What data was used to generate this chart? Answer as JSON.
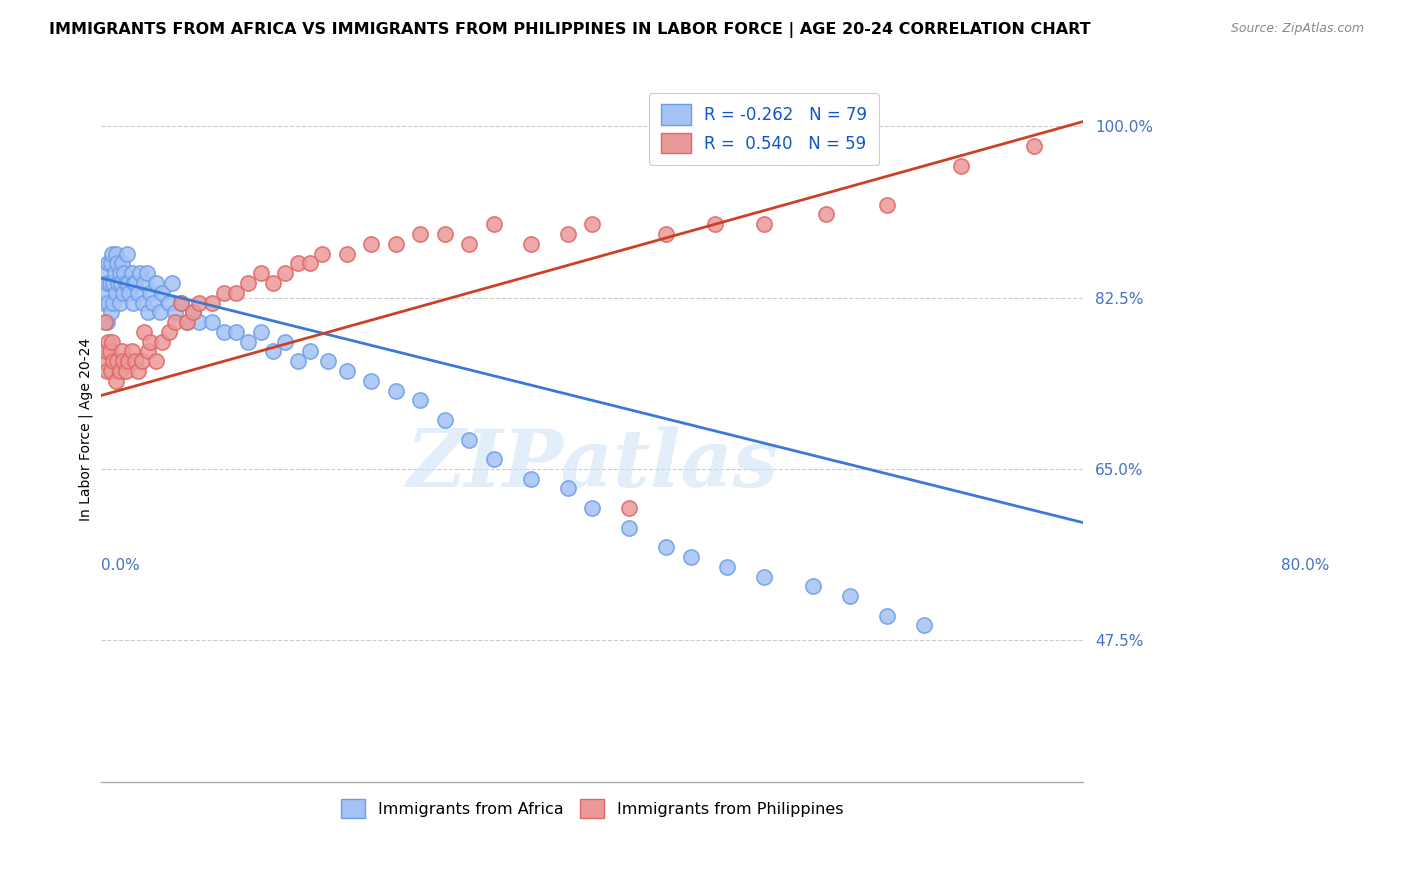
{
  "title": "IMMIGRANTS FROM AFRICA VS IMMIGRANTS FROM PHILIPPINES IN LABOR FORCE | AGE 20-24 CORRELATION CHART",
  "source": "Source: ZipAtlas.com",
  "ylabel": "In Labor Force | Age 20-24",
  "yticks": [
    0.475,
    0.65,
    0.825,
    1.0
  ],
  "ytick_labels": [
    "47.5%",
    "65.0%",
    "82.5%",
    "100.0%"
  ],
  "xmin": 0.0,
  "xmax": 0.8,
  "ymin": 0.33,
  "ymax": 1.05,
  "africa_color": "#a4c2f4",
  "africa_edge": "#6d9eeb",
  "africa_line_color": "#3c78d8",
  "philippines_color": "#ea9999",
  "philippines_edge": "#e06666",
  "philippines_line_color": "#cc4125",
  "africa_R": -0.262,
  "africa_N": 79,
  "philippines_R": 0.54,
  "philippines_N": 59,
  "watermark": "ZIPatlas",
  "title_fontsize": 11.5,
  "source_fontsize": 9,
  "axis_label_fontsize": 10,
  "tick_fontsize": 11,
  "legend_fontsize": 12,
  "africa_trend_x0": 0.0,
  "africa_trend_y0": 0.845,
  "africa_trend_x1": 0.8,
  "africa_trend_y1": 0.595,
  "phil_trend_x0": 0.0,
  "phil_trend_y0": 0.725,
  "phil_trend_x1": 0.8,
  "phil_trend_y1": 1.005,
  "africa_scatter_x": [
    0.002,
    0.003,
    0.004,
    0.005,
    0.005,
    0.006,
    0.006,
    0.007,
    0.008,
    0.008,
    0.009,
    0.01,
    0.01,
    0.011,
    0.012,
    0.012,
    0.013,
    0.014,
    0.015,
    0.015,
    0.016,
    0.017,
    0.018,
    0.019,
    0.02,
    0.021,
    0.022,
    0.023,
    0.025,
    0.026,
    0.027,
    0.028,
    0.03,
    0.032,
    0.034,
    0.035,
    0.037,
    0.038,
    0.04,
    0.042,
    0.045,
    0.048,
    0.05,
    0.055,
    0.058,
    0.06,
    0.065,
    0.07,
    0.075,
    0.08,
    0.09,
    0.1,
    0.11,
    0.12,
    0.13,
    0.14,
    0.15,
    0.16,
    0.17,
    0.185,
    0.2,
    0.22,
    0.24,
    0.26,
    0.28,
    0.3,
    0.32,
    0.35,
    0.38,
    0.4,
    0.43,
    0.46,
    0.48,
    0.51,
    0.54,
    0.58,
    0.61,
    0.64,
    0.67
  ],
  "africa_scatter_y": [
    0.82,
    0.83,
    0.85,
    0.8,
    0.84,
    0.86,
    0.82,
    0.84,
    0.81,
    0.86,
    0.87,
    0.84,
    0.82,
    0.85,
    0.83,
    0.87,
    0.86,
    0.84,
    0.82,
    0.85,
    0.84,
    0.86,
    0.83,
    0.85,
    0.84,
    0.87,
    0.84,
    0.83,
    0.85,
    0.82,
    0.84,
    0.84,
    0.83,
    0.85,
    0.82,
    0.84,
    0.85,
    0.81,
    0.83,
    0.82,
    0.84,
    0.81,
    0.83,
    0.82,
    0.84,
    0.81,
    0.82,
    0.8,
    0.81,
    0.8,
    0.8,
    0.79,
    0.79,
    0.78,
    0.79,
    0.77,
    0.78,
    0.76,
    0.77,
    0.76,
    0.75,
    0.74,
    0.73,
    0.72,
    0.7,
    0.68,
    0.66,
    0.64,
    0.63,
    0.61,
    0.59,
    0.57,
    0.56,
    0.55,
    0.54,
    0.53,
    0.52,
    0.5,
    0.49
  ],
  "phil_scatter_x": [
    0.002,
    0.003,
    0.004,
    0.005,
    0.006,
    0.007,
    0.008,
    0.009,
    0.01,
    0.012,
    0.013,
    0.015,
    0.017,
    0.018,
    0.02,
    0.022,
    0.025,
    0.028,
    0.03,
    0.033,
    0.035,
    0.038,
    0.04,
    0.045,
    0.05,
    0.055,
    0.06,
    0.065,
    0.07,
    0.075,
    0.08,
    0.09,
    0.1,
    0.11,
    0.12,
    0.13,
    0.14,
    0.15,
    0.16,
    0.17,
    0.18,
    0.2,
    0.22,
    0.24,
    0.26,
    0.28,
    0.3,
    0.32,
    0.35,
    0.38,
    0.4,
    0.43,
    0.46,
    0.5,
    0.54,
    0.59,
    0.64,
    0.7,
    0.76
  ],
  "phil_scatter_y": [
    0.76,
    0.8,
    0.77,
    0.75,
    0.78,
    0.77,
    0.75,
    0.78,
    0.76,
    0.74,
    0.76,
    0.75,
    0.77,
    0.76,
    0.75,
    0.76,
    0.77,
    0.76,
    0.75,
    0.76,
    0.79,
    0.77,
    0.78,
    0.76,
    0.78,
    0.79,
    0.8,
    0.82,
    0.8,
    0.81,
    0.82,
    0.82,
    0.83,
    0.83,
    0.84,
    0.85,
    0.84,
    0.85,
    0.86,
    0.86,
    0.87,
    0.87,
    0.88,
    0.88,
    0.89,
    0.89,
    0.88,
    0.9,
    0.88,
    0.89,
    0.9,
    0.61,
    0.89,
    0.9,
    0.9,
    0.91,
    0.92,
    0.96,
    0.98
  ]
}
